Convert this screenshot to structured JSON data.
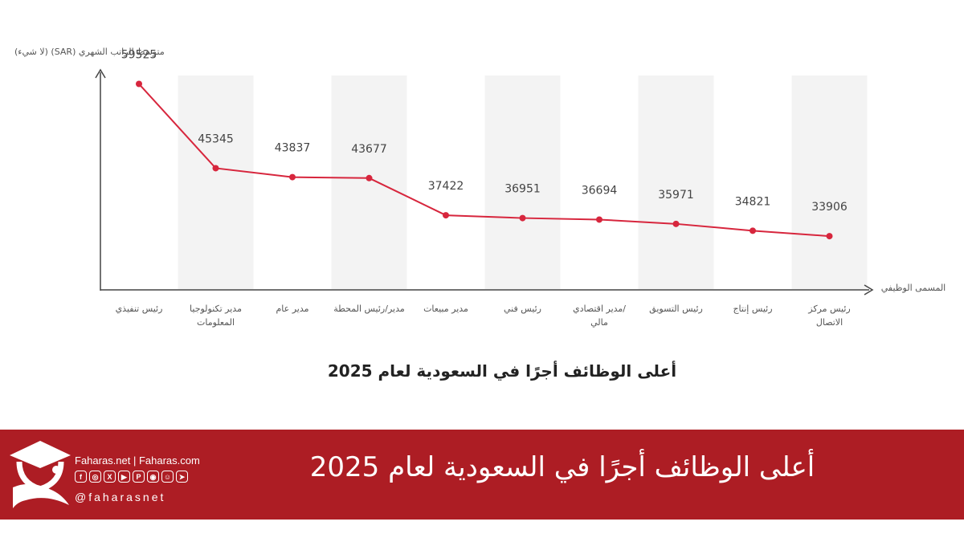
{
  "chart_data": {
    "type": "line",
    "title": "أعلى الوظائف أجرًا في السعودية لعام 2025",
    "ylabel": "متوسط الراتب الشهري (SAR) (لا شيء)",
    "xlabel": "المسمى الوظيفي",
    "categories": [
      "رئيس تنفيذي",
      "مدير تكنولوجيا المعلومات",
      "مدير عام",
      "مدير/رئيس المحطة",
      "مدير مبيعات",
      "رئيس فني",
      "/مدير اقتصادي مالي",
      "رئيس التسويق",
      "رئيس إنتاج",
      "رئيس مركز الاتصال"
    ],
    "values": [
      59525,
      45345,
      43837,
      43677,
      37422,
      36951,
      36694,
      35971,
      34821,
      33906
    ],
    "ylim": [
      25000,
      65000
    ],
    "grid": false,
    "line_color": "#d7263d",
    "band_color": "#f3f3f3"
  },
  "banner": {
    "title": "أعلى الوظائف أجرًا في السعودية لعام 2025",
    "brand": "Faharas.net | Faharas.com",
    "handle": "@faharasnet",
    "social_icons": [
      "facebook-icon",
      "instagram-icon",
      "x-icon",
      "youtube-icon",
      "pinterest-icon",
      "reddit-icon",
      "snapchat-icon",
      "telegram-icon"
    ],
    "background": "#ad1d24"
  }
}
